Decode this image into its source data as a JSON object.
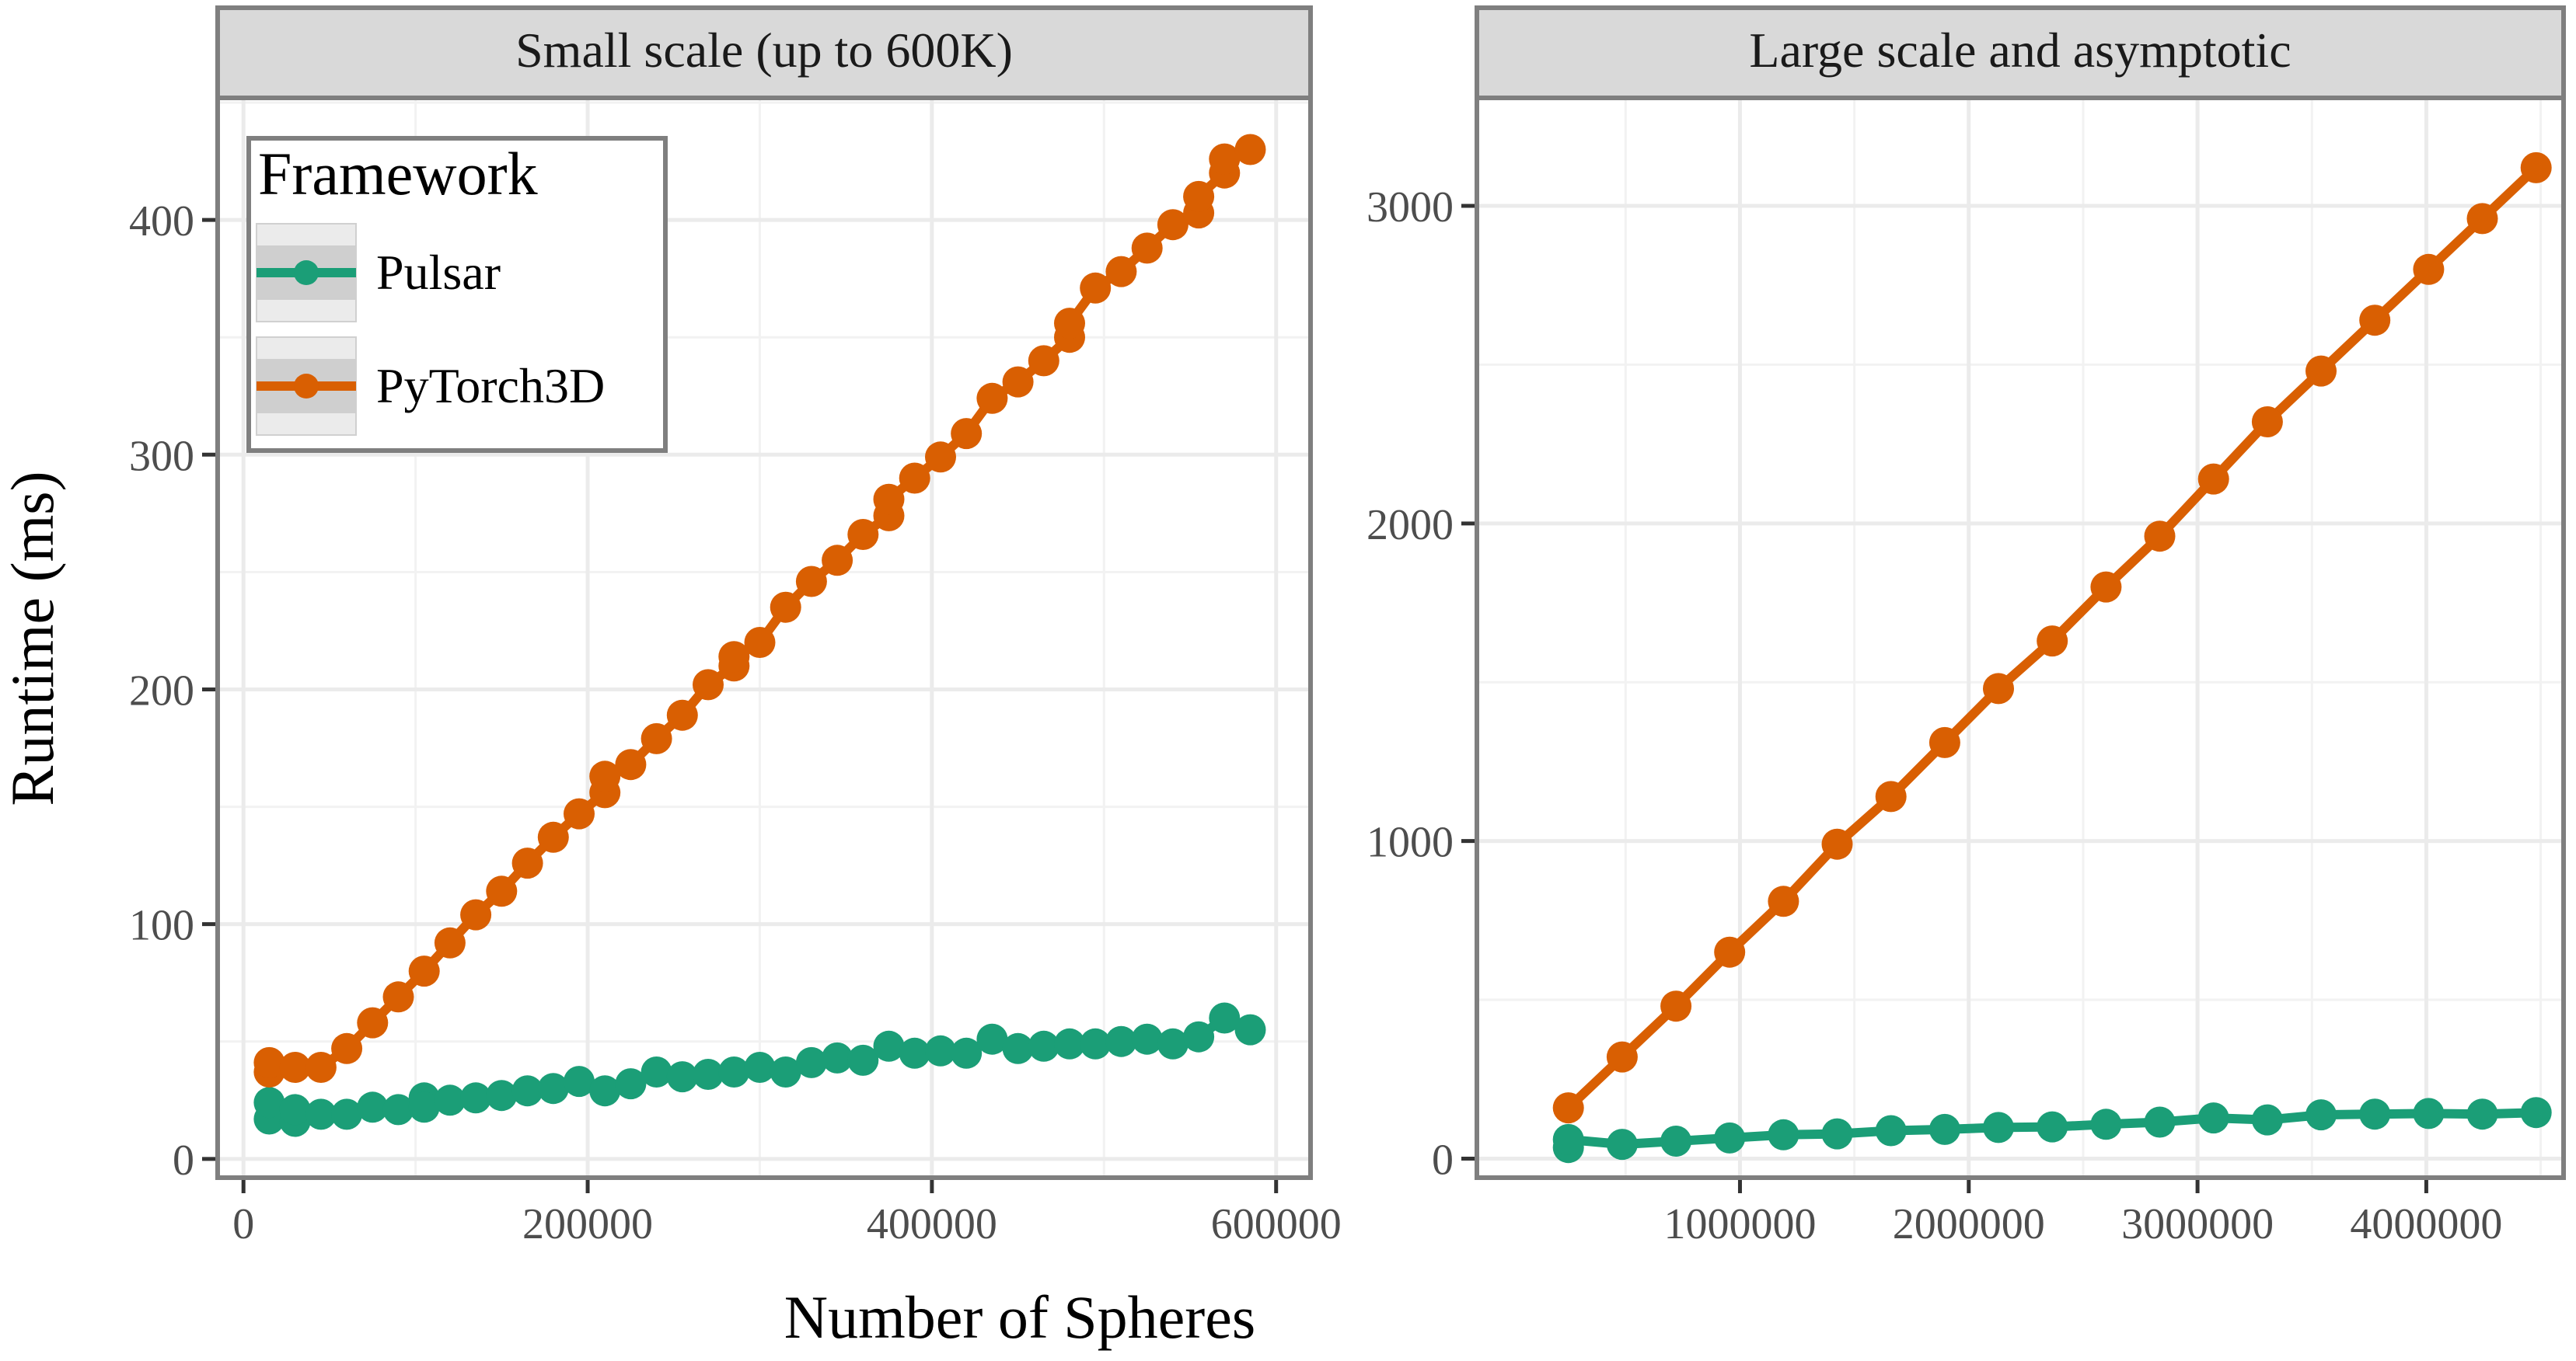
{
  "chart_data": {
    "type": "line",
    "ylabel": "Runtime (ms)",
    "xlabel": "Number of Spheres",
    "colors": {
      "Pulsar": "#1b9e77",
      "PyTorch3D": "#d95f02"
    },
    "legend": {
      "title": "Framework",
      "entries": [
        "Pulsar",
        "PyTorch3D"
      ],
      "placement": "top-left"
    },
    "panels": [
      {
        "title": "Small scale (up to 600K)",
        "xlim": [
          -15000,
          620000
        ],
        "ylim": [
          -8,
          452
        ],
        "xticks": [
          0,
          200000,
          400000,
          600000
        ],
        "xtick_labels": [
          "0",
          "200000",
          "400000",
          "600000"
        ],
        "yticks": [
          0,
          100,
          200,
          300,
          400
        ],
        "ytick_labels": [
          "0",
          "100",
          "200",
          "300",
          "400"
        ],
        "series": [
          {
            "name": "Pulsar",
            "x": [
              15000,
              15000,
              30000,
              30000,
              45000,
              60000,
              75000,
              90000,
              105000,
              105000,
              120000,
              135000,
              150000,
              165000,
              180000,
              195000,
              210000,
              225000,
              240000,
              255000,
              270000,
              285000,
              300000,
              315000,
              330000,
              345000,
              360000,
              375000,
              390000,
              405000,
              420000,
              435000,
              450000,
              465000,
              480000,
              495000,
              510000,
              525000,
              540000,
              555000,
              570000,
              585000
            ],
            "y": [
              17,
              24,
              16,
              21,
              19,
              19,
              22,
              21,
              26,
              22,
              25,
              26,
              27,
              29,
              30,
              33,
              29,
              32,
              37,
              35,
              36,
              37,
              39,
              37,
              41,
              43,
              42,
              48,
              45,
              46,
              45,
              51,
              47,
              48,
              49,
              49,
              50,
              51,
              49,
              52,
              60,
              55
            ],
            "color": "#1b9e77"
          },
          {
            "name": "PyTorch3D",
            "x": [
              15000,
              15000,
              30000,
              45000,
              60000,
              75000,
              90000,
              105000,
              120000,
              135000,
              150000,
              165000,
              180000,
              195000,
              210000,
              210000,
              225000,
              240000,
              255000,
              270000,
              285000,
              285000,
              300000,
              315000,
              330000,
              345000,
              360000,
              375000,
              375000,
              390000,
              405000,
              420000,
              435000,
              450000,
              465000,
              480000,
              480000,
              495000,
              510000,
              525000,
              540000,
              555000,
              555000,
              570000,
              570000,
              585000
            ],
            "y": [
              37,
              41,
              39,
              39,
              47,
              58,
              69,
              80,
              92,
              104,
              114,
              126,
              137,
              147,
              156,
              163,
              168,
              179,
              189,
              202,
              210,
              214,
              220,
              235,
              246,
              255,
              266,
              274,
              281,
              290,
              299,
              309,
              324,
              331,
              340,
              350,
              356,
              371,
              378,
              388,
              398,
              403,
              410,
              420,
              426,
              430
            ],
            "color": "#d95f02"
          }
        ]
      },
      {
        "title": "Large scale and asymptotic",
        "xlim": [
          -150000,
          4600000
        ],
        "ylim": [
          -60,
          3340
        ],
        "xticks": [
          1000000,
          2000000,
          3000000,
          4000000
        ],
        "xtick_labels": [
          "1000000",
          "2000000",
          "3000000",
          "4000000"
        ],
        "yticks": [
          0,
          1000,
          2000,
          3000
        ],
        "ytick_labels": [
          "0",
          "1000",
          "2000",
          "3000"
        ],
        "series": [
          {
            "name": "Pulsar",
            "x": [
              250000,
              250000,
              485000,
              720000,
              955000,
              1190000,
              1425000,
              1660000,
              1895000,
              2130000,
              2365000,
              2600000,
              2835000,
              3070000,
              3305000,
              3540000,
              3775000,
              4010000,
              4245000,
              4480000
            ],
            "y": [
              35,
              60,
              45,
              55,
              65,
              75,
              78,
              88,
              92,
              98,
              100,
              108,
              115,
              128,
              122,
              138,
              140,
              142,
              140,
              145
            ],
            "color": "#1b9e77"
          },
          {
            "name": "PyTorch3D",
            "x": [
              250000,
              485000,
              720000,
              955000,
              1190000,
              1425000,
              1660000,
              1895000,
              2130000,
              2365000,
              2600000,
              2835000,
              3070000,
              3305000,
              3540000,
              3775000,
              4010000,
              4245000,
              4480000
            ],
            "y": [
              160,
              320,
              480,
              650,
              810,
              990,
              1140,
              1310,
              1480,
              1630,
              1800,
              1960,
              2140,
              2320,
              2480,
              2640,
              2800,
              2960,
              3120
            ],
            "color": "#d95f02"
          }
        ]
      }
    ]
  }
}
